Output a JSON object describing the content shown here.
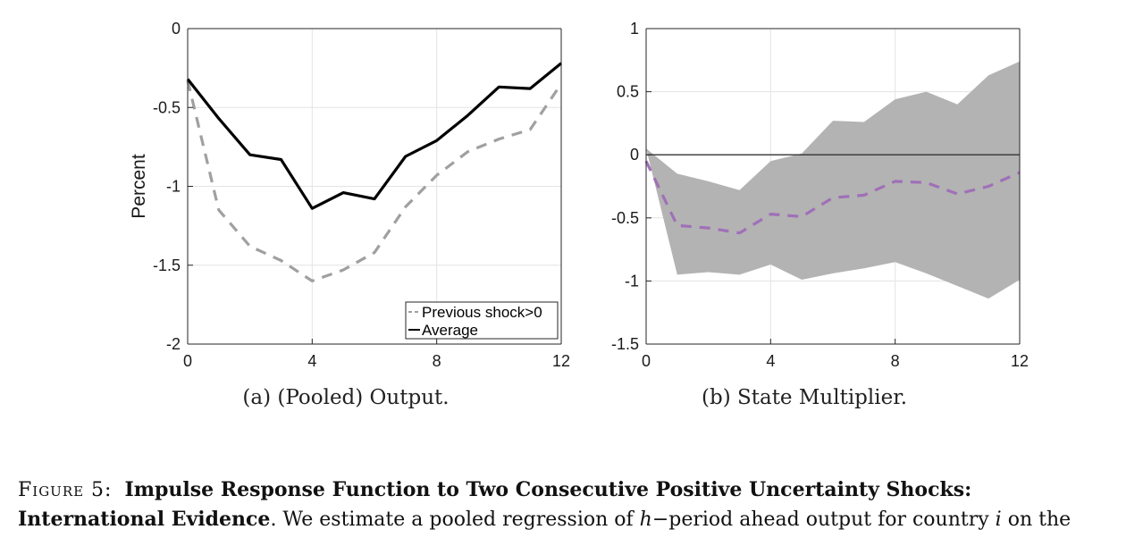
{
  "chart_data": [
    {
      "type": "line",
      "x": [
        0,
        1,
        2,
        3,
        4,
        5,
        6,
        7,
        8,
        9,
        10,
        11,
        12
      ],
      "xticks": [
        0,
        4,
        8,
        12
      ],
      "yticks": [
        0,
        -0.5,
        -1,
        -1.5,
        -2
      ],
      "xtick_labels": [
        "0",
        "4",
        "8",
        "12"
      ],
      "ytick_labels": [
        "0",
        "-0.5",
        "-1",
        "-1.5",
        "-2"
      ],
      "xlim": [
        0,
        12
      ],
      "ylim": [
        -2,
        0
      ],
      "ylabel": "Percent",
      "grid": true,
      "legend_position": "bottom-right",
      "series": [
        {
          "name": "Previous shock>0",
          "style": "dashed",
          "color": "#a0a0a0",
          "values": [
            -0.33,
            -1.15,
            -1.38,
            -1.47,
            -1.6,
            -1.53,
            -1.42,
            -1.13,
            -0.93,
            -0.78,
            -0.7,
            -0.64,
            -0.35
          ]
        },
        {
          "name": "Average",
          "style": "solid",
          "color": "#000000",
          "values": [
            -0.32,
            -0.57,
            -0.8,
            -0.83,
            -1.14,
            -1.04,
            -1.08,
            -0.81,
            -0.71,
            -0.55,
            -0.37,
            -0.38,
            -0.22
          ]
        }
      ],
      "subcaption": "(a) (Pooled) Output."
    },
    {
      "type": "line",
      "x": [
        0,
        1,
        2,
        3,
        4,
        5,
        6,
        7,
        8,
        9,
        10,
        11,
        12
      ],
      "xticks": [
        0,
        4,
        8,
        12
      ],
      "yticks": [
        1,
        0.5,
        0,
        -0.5,
        -1,
        -1.5
      ],
      "xtick_labels": [
        "0",
        "4",
        "8",
        "12"
      ],
      "ytick_labels": [
        "1",
        "0.5",
        "0",
        "-0.5",
        "-1",
        "-1.5"
      ],
      "xlim": [
        0,
        12
      ],
      "ylim": [
        -1.5,
        1
      ],
      "grid": true,
      "zero_line": true,
      "band_color": "#b3b3b3",
      "band_upper": [
        0.05,
        -0.15,
        -0.21,
        -0.28,
        -0.05,
        0.01,
        0.27,
        0.26,
        0.44,
        0.5,
        0.4,
        0.63,
        0.74
      ],
      "band_lower": [
        0.05,
        -0.95,
        -0.93,
        -0.95,
        -0.87,
        -0.99,
        -0.94,
        -0.9,
        -0.85,
        -0.94,
        -1.04,
        -1.14,
        -0.99
      ],
      "series": [
        {
          "style": "dashed",
          "color": "#a070b8",
          "values": [
            -0.05,
            -0.56,
            -0.58,
            -0.62,
            -0.47,
            -0.49,
            -0.34,
            -0.32,
            -0.21,
            -0.22,
            -0.31,
            -0.25,
            -0.14
          ]
        }
      ],
      "subcaption": "(b) State Multiplier."
    }
  ],
  "caption": {
    "figure_label": "Figure 5:",
    "title_part1": "Impulse Response Function to Two Consecutive Positive Uncertainty Shocks:",
    "title_part2": "International Evidence",
    "text_a": ". We estimate a pooled regression of ",
    "var_h": "h",
    "text_b": "−period ahead output for country ",
    "var_i": "i",
    "text_c": " on the"
  }
}
